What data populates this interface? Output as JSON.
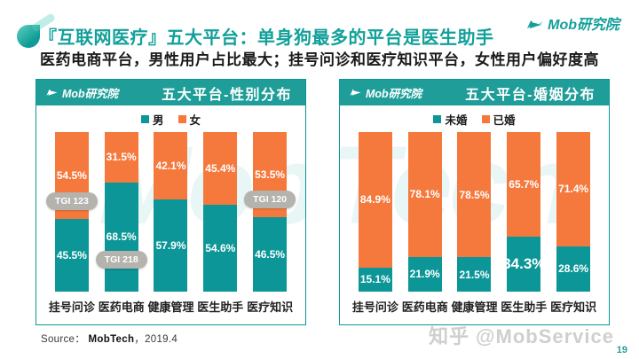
{
  "page": {
    "title": "『互联网医疗』五大平台：单身狗最多的平台是医生助手",
    "subtitle": "医药电商平台，男性用户占比最大；挂号问诊和医疗知识平台，女性用户偏好度高",
    "logo_text": "Mob研究院",
    "source_prefix": "Source：",
    "source_name": "MobTech",
    "source_date": "，2019.4",
    "watermark": "知乎 @MobService",
    "page_number": "19",
    "background_watermark": "MobTech"
  },
  "colors": {
    "teal": "#0C9697",
    "orange": "#F5793D",
    "header_teal": "#1F9E99",
    "title_teal": "#12A09A",
    "badge_gray": "#B5B3AD",
    "page_number_teal": "#2A9D98"
  },
  "chart_data": [
    {
      "type": "bar",
      "stacked": true,
      "panel_logo": "Mob研究院",
      "title": "五大平台-性别分布",
      "unit": "%",
      "ylim": [
        0,
        100
      ],
      "grid": false,
      "legend_position": "top-center",
      "categories": [
        "挂号问诊",
        "医药电商",
        "健康管理",
        "医生助手",
        "医疗知识"
      ],
      "series": [
        {
          "name": "男",
          "color": "teal",
          "values": [
            45.5,
            68.5,
            57.9,
            54.6,
            46.5
          ]
        },
        {
          "name": "女",
          "color": "orange",
          "values": [
            54.5,
            31.5,
            42.1,
            45.4,
            53.5
          ]
        }
      ],
      "badges": [
        {
          "label": "TGI 123",
          "bar": 0,
          "anchor": "split"
        },
        {
          "label": "TGI 218",
          "bar": 1,
          "anchor": "lower"
        },
        {
          "label": "TGI 120",
          "bar": 4,
          "anchor": "split"
        }
      ],
      "highlight": null
    },
    {
      "type": "bar",
      "stacked": true,
      "panel_logo": "Mob研究院",
      "title": "五大平台-婚姻分布",
      "unit": "%",
      "ylim": [
        0,
        100
      ],
      "grid": false,
      "legend_position": "top-center",
      "categories": [
        "挂号问诊",
        "医药电商",
        "健康管理",
        "医生助手",
        "医疗知识"
      ],
      "series": [
        {
          "name": "未婚",
          "color": "teal",
          "values": [
            15.1,
            21.9,
            21.5,
            34.3,
            28.6
          ]
        },
        {
          "name": "已婚",
          "color": "orange",
          "values": [
            84.9,
            78.1,
            78.5,
            65.7,
            71.4
          ]
        }
      ],
      "badges": [],
      "highlight": {
        "series": 0,
        "bar": 3
      }
    }
  ]
}
